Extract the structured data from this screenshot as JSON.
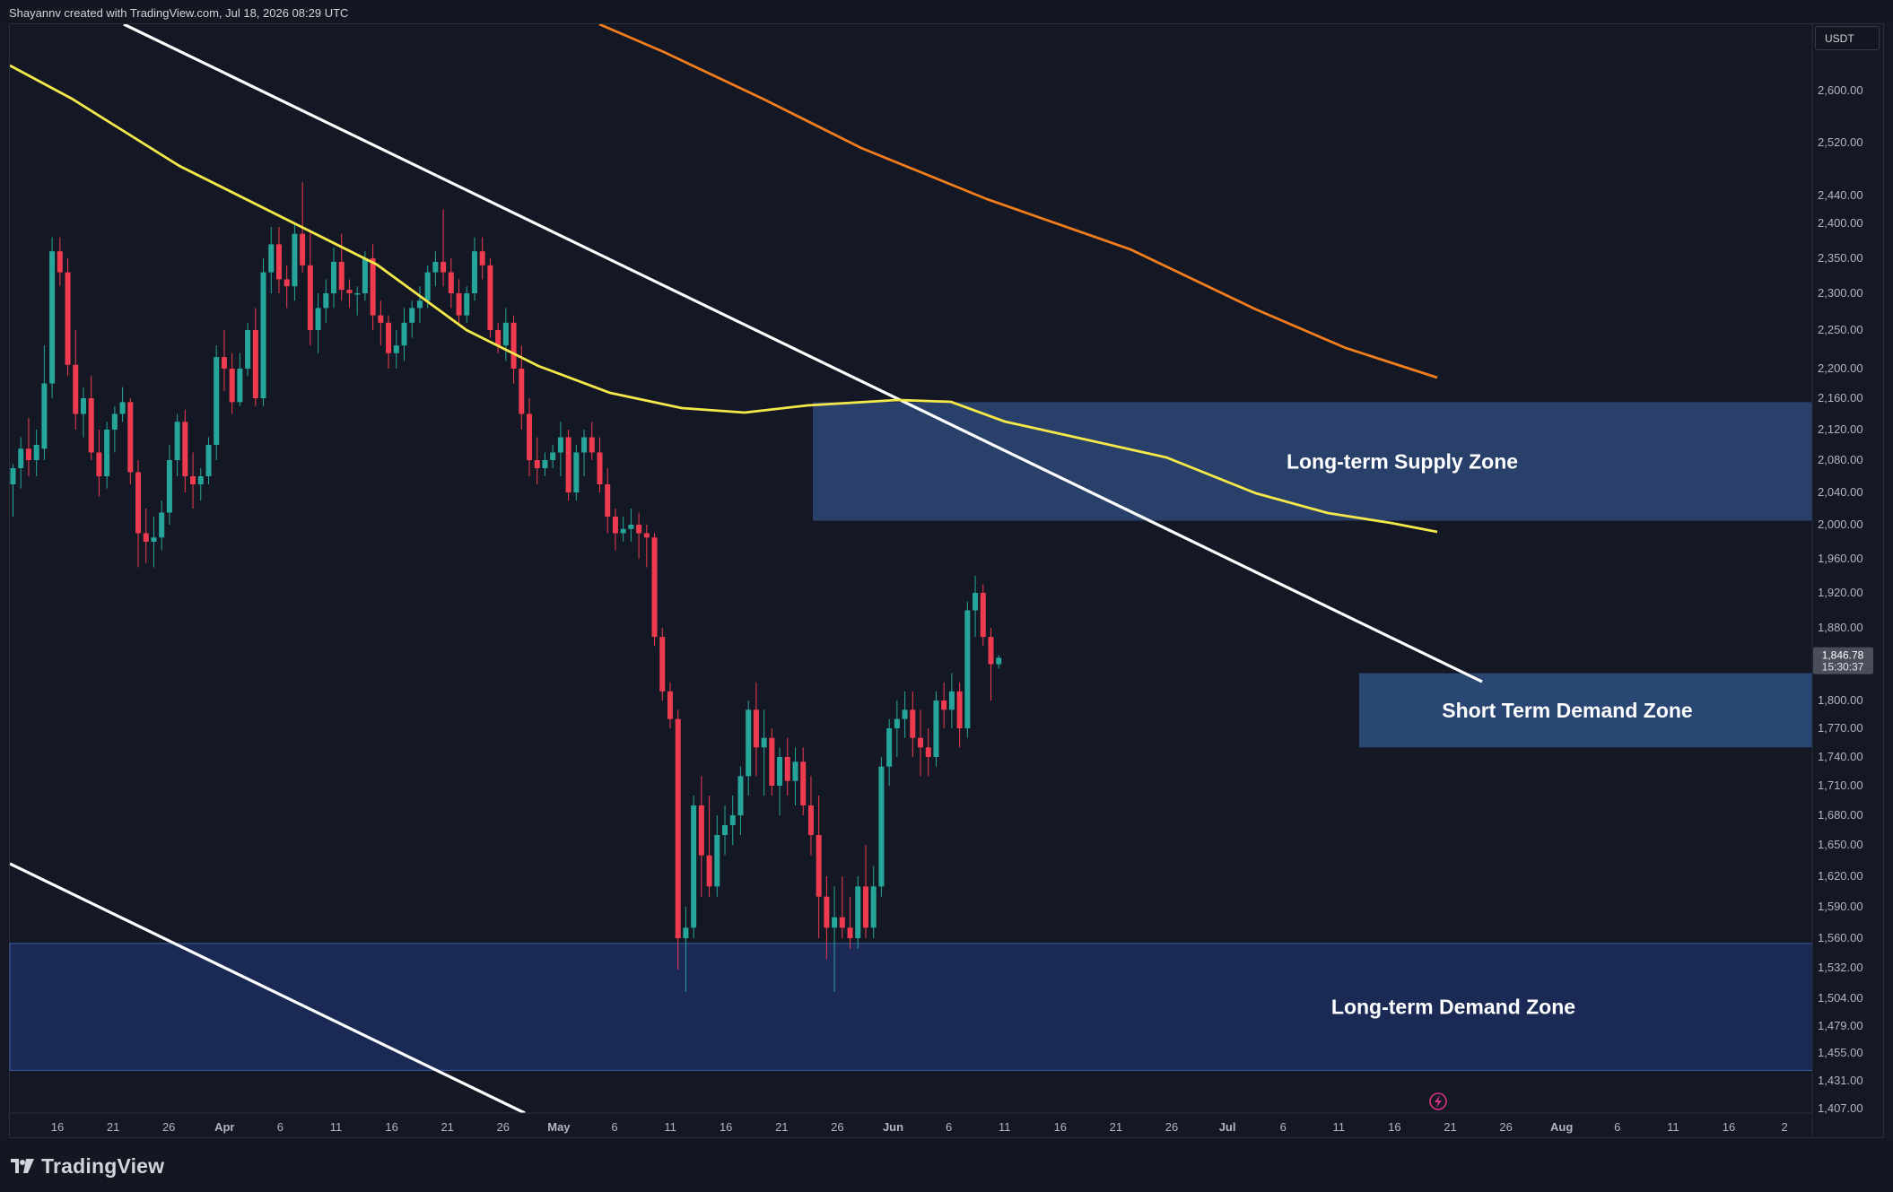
{
  "header": {
    "attribution": "Shayannv created with TradingView.com, Jul 18, 2026 08:29 UTC"
  },
  "price_axis": {
    "currency": "USDT",
    "ticks": [
      "2,600.00",
      "2,520.00",
      "2,440.00",
      "2,400.00",
      "2,350.00",
      "2,300.00",
      "2,250.00",
      "2,200.00",
      "2,160.00",
      "2,120.00",
      "2,080.00",
      "2,040.00",
      "2,000.00",
      "1,960.00",
      "1,920.00",
      "1,880.00",
      "1,800.00",
      "1,770.00",
      "1,740.00",
      "1,710.00",
      "1,680.00",
      "1,650.00",
      "1,620.00",
      "1,590.00",
      "1,560.00",
      "1,532.00",
      "1,504.00",
      "1,479.00",
      "1,455.00",
      "1,431.00",
      "1,407.00"
    ],
    "current_price": "1,846.78",
    "countdown": "15:30:37"
  },
  "time_axis": {
    "ticks": [
      "16",
      "21",
      "26",
      "Apr",
      "6",
      "11",
      "16",
      "21",
      "26",
      "May",
      "6",
      "11",
      "16",
      "21",
      "26",
      "Jun",
      "6",
      "11",
      "16",
      "21",
      "26",
      "Jul",
      "6",
      "11",
      "16",
      "21",
      "26",
      "Aug",
      "6",
      "11",
      "16",
      "2"
    ]
  },
  "footer": {
    "brand": "TradingView"
  },
  "colors": {
    "background": "#141824",
    "bullish": "#26a69a",
    "bearish": "#ef3b50",
    "ma_fast": "#f5e84a",
    "ma_slow": "#f27d1d",
    "zone": "#2e4c7e"
  },
  "chart_data": {
    "type": "candlestick",
    "title": "",
    "price_labels": [
      2600,
      2520,
      2440,
      2400,
      2350,
      2300,
      2250,
      2200,
      2160,
      2120,
      2080,
      2040,
      2000,
      1960,
      1920,
      1880,
      1800,
      1770,
      1740,
      1710,
      1680,
      1650,
      1620,
      1590,
      1560,
      1532,
      1504,
      1479,
      1455,
      1431,
      1407
    ],
    "x_ticks": [
      "16",
      "21",
      "26",
      "Apr",
      "6",
      "11",
      "16",
      "21",
      "26",
      "May",
      "6",
      "11",
      "16",
      "21",
      "26",
      "Jun",
      "6",
      "11",
      "16",
      "21",
      "26",
      "Jul",
      "6",
      "11",
      "16",
      "21",
      "26",
      "Aug",
      "6",
      "11",
      "16",
      "2"
    ],
    "last_price": 1846.78,
    "countdown": "15:30:37",
    "grid": false,
    "candles": [
      {
        "o": 2050,
        "h": 2075,
        "l": 2010,
        "c": 2070
      },
      {
        "o": 2070,
        "h": 2110,
        "l": 2045,
        "c": 2095
      },
      {
        "o": 2095,
        "h": 2135,
        "l": 2060,
        "c": 2080
      },
      {
        "o": 2080,
        "h": 2120,
        "l": 2060,
        "c": 2100
      },
      {
        "o": 2095,
        "h": 2230,
        "l": 2080,
        "c": 2180
      },
      {
        "o": 2180,
        "h": 2380,
        "l": 2160,
        "c": 2360
      },
      {
        "o": 2360,
        "h": 2380,
        "l": 2310,
        "c": 2330
      },
      {
        "o": 2330,
        "h": 2350,
        "l": 2190,
        "c": 2205
      },
      {
        "o": 2205,
        "h": 2250,
        "l": 2120,
        "c": 2140
      },
      {
        "o": 2140,
        "h": 2175,
        "l": 2110,
        "c": 2160
      },
      {
        "o": 2160,
        "h": 2190,
        "l": 2080,
        "c": 2090
      },
      {
        "o": 2090,
        "h": 2120,
        "l": 2035,
        "c": 2060
      },
      {
        "o": 2060,
        "h": 2130,
        "l": 2045,
        "c": 2120
      },
      {
        "o": 2120,
        "h": 2150,
        "l": 2090,
        "c": 2140
      },
      {
        "o": 2140,
        "h": 2175,
        "l": 2130,
        "c": 2155
      },
      {
        "o": 2155,
        "h": 2160,
        "l": 2050,
        "c": 2065
      },
      {
        "o": 2065,
        "h": 2080,
        "l": 1950,
        "c": 1990
      },
      {
        "o": 1990,
        "h": 2020,
        "l": 1955,
        "c": 1980
      },
      {
        "o": 1980,
        "h": 2010,
        "l": 1950,
        "c": 1985
      },
      {
        "o": 1985,
        "h": 2030,
        "l": 1970,
        "c": 2015
      },
      {
        "o": 2015,
        "h": 2100,
        "l": 2000,
        "c": 2080
      },
      {
        "o": 2080,
        "h": 2140,
        "l": 2060,
        "c": 2130
      },
      {
        "o": 2130,
        "h": 2145,
        "l": 2040,
        "c": 2060
      },
      {
        "o": 2060,
        "h": 2090,
        "l": 2020,
        "c": 2050
      },
      {
        "o": 2050,
        "h": 2070,
        "l": 2030,
        "c": 2060
      },
      {
        "o": 2060,
        "h": 2110,
        "l": 2050,
        "c": 2100
      },
      {
        "o": 2100,
        "h": 2230,
        "l": 2080,
        "c": 2215
      },
      {
        "o": 2215,
        "h": 2250,
        "l": 2170,
        "c": 2200
      },
      {
        "o": 2200,
        "h": 2220,
        "l": 2140,
        "c": 2155
      },
      {
        "o": 2155,
        "h": 2220,
        "l": 2150,
        "c": 2200
      },
      {
        "o": 2200,
        "h": 2260,
        "l": 2190,
        "c": 2250
      },
      {
        "o": 2250,
        "h": 2280,
        "l": 2150,
        "c": 2160
      },
      {
        "o": 2160,
        "h": 2350,
        "l": 2150,
        "c": 2330
      },
      {
        "o": 2330,
        "h": 2395,
        "l": 2300,
        "c": 2370
      },
      {
        "o": 2370,
        "h": 2395,
        "l": 2300,
        "c": 2320
      },
      {
        "o": 2320,
        "h": 2340,
        "l": 2280,
        "c": 2310
      },
      {
        "o": 2310,
        "h": 2400,
        "l": 2290,
        "c": 2385
      },
      {
        "o": 2385,
        "h": 2460,
        "l": 2330,
        "c": 2340
      },
      {
        "o": 2340,
        "h": 2390,
        "l": 2230,
        "c": 2250
      },
      {
        "o": 2250,
        "h": 2300,
        "l": 2220,
        "c": 2280
      },
      {
        "o": 2280,
        "h": 2320,
        "l": 2260,
        "c": 2300
      },
      {
        "o": 2300,
        "h": 2365,
        "l": 2280,
        "c": 2345
      },
      {
        "o": 2345,
        "h": 2385,
        "l": 2290,
        "c": 2305
      },
      {
        "o": 2305,
        "h": 2320,
        "l": 2280,
        "c": 2300
      },
      {
        "o": 2300,
        "h": 2310,
        "l": 2270,
        "c": 2300
      },
      {
        "o": 2300,
        "h": 2360,
        "l": 2290,
        "c": 2350
      },
      {
        "o": 2350,
        "h": 2370,
        "l": 2250,
        "c": 2270
      },
      {
        "o": 2270,
        "h": 2290,
        "l": 2230,
        "c": 2260
      },
      {
        "o": 2260,
        "h": 2270,
        "l": 2200,
        "c": 2220
      },
      {
        "o": 2220,
        "h": 2250,
        "l": 2200,
        "c": 2230
      },
      {
        "o": 2230,
        "h": 2280,
        "l": 2210,
        "c": 2260
      },
      {
        "o": 2260,
        "h": 2290,
        "l": 2240,
        "c": 2280
      },
      {
        "o": 2280,
        "h": 2310,
        "l": 2260,
        "c": 2290
      },
      {
        "o": 2290,
        "h": 2340,
        "l": 2280,
        "c": 2330
      },
      {
        "o": 2330,
        "h": 2360,
        "l": 2310,
        "c": 2345
      },
      {
        "o": 2345,
        "h": 2420,
        "l": 2310,
        "c": 2330
      },
      {
        "o": 2330,
        "h": 2350,
        "l": 2280,
        "c": 2300
      },
      {
        "o": 2300,
        "h": 2320,
        "l": 2260,
        "c": 2270
      },
      {
        "o": 2270,
        "h": 2310,
        "l": 2260,
        "c": 2300
      },
      {
        "o": 2300,
        "h": 2380,
        "l": 2290,
        "c": 2360
      },
      {
        "o": 2360,
        "h": 2380,
        "l": 2320,
        "c": 2340
      },
      {
        "o": 2340,
        "h": 2350,
        "l": 2240,
        "c": 2250
      },
      {
        "o": 2250,
        "h": 2260,
        "l": 2220,
        "c": 2230
      },
      {
        "o": 2230,
        "h": 2280,
        "l": 2210,
        "c": 2260
      },
      {
        "o": 2260,
        "h": 2270,
        "l": 2180,
        "c": 2200
      },
      {
        "o": 2200,
        "h": 2230,
        "l": 2120,
        "c": 2140
      },
      {
        "o": 2140,
        "h": 2160,
        "l": 2060,
        "c": 2080
      },
      {
        "o": 2080,
        "h": 2110,
        "l": 2050,
        "c": 2070
      },
      {
        "o": 2070,
        "h": 2090,
        "l": 2060,
        "c": 2080
      },
      {
        "o": 2080,
        "h": 2100,
        "l": 2070,
        "c": 2090
      },
      {
        "o": 2090,
        "h": 2130,
        "l": 2060,
        "c": 2110
      },
      {
        "o": 2110,
        "h": 2120,
        "l": 2030,
        "c": 2040
      },
      {
        "o": 2040,
        "h": 2100,
        "l": 2030,
        "c": 2090
      },
      {
        "o": 2090,
        "h": 2120,
        "l": 2060,
        "c": 2110
      },
      {
        "o": 2110,
        "h": 2130,
        "l": 2080,
        "c": 2090
      },
      {
        "o": 2090,
        "h": 2110,
        "l": 2040,
        "c": 2050
      },
      {
        "o": 2050,
        "h": 2070,
        "l": 1990,
        "c": 2010
      },
      {
        "o": 2010,
        "h": 2020,
        "l": 1970,
        "c": 1990
      },
      {
        "o": 1990,
        "h": 2010,
        "l": 1980,
        "c": 1995
      },
      {
        "o": 1995,
        "h": 2020,
        "l": 1980,
        "c": 2000
      },
      {
        "o": 2000,
        "h": 2015,
        "l": 1960,
        "c": 1990
      },
      {
        "o": 1990,
        "h": 2000,
        "l": 1950,
        "c": 1985
      },
      {
        "o": 1985,
        "h": 1990,
        "l": 1860,
        "c": 1870
      },
      {
        "o": 1870,
        "h": 1880,
        "l": 1800,
        "c": 1810
      },
      {
        "o": 1810,
        "h": 1820,
        "l": 1770,
        "c": 1780
      },
      {
        "o": 1780,
        "h": 1790,
        "l": 1530,
        "c": 1560
      },
      {
        "o": 1560,
        "h": 1590,
        "l": 1510,
        "c": 1570
      },
      {
        "o": 1570,
        "h": 1700,
        "l": 1560,
        "c": 1690
      },
      {
        "o": 1690,
        "h": 1720,
        "l": 1600,
        "c": 1640
      },
      {
        "o": 1640,
        "h": 1700,
        "l": 1600,
        "c": 1610
      },
      {
        "o": 1610,
        "h": 1680,
        "l": 1600,
        "c": 1660
      },
      {
        "o": 1660,
        "h": 1690,
        "l": 1640,
        "c": 1670
      },
      {
        "o": 1670,
        "h": 1700,
        "l": 1650,
        "c": 1680
      },
      {
        "o": 1680,
        "h": 1730,
        "l": 1660,
        "c": 1720
      },
      {
        "o": 1720,
        "h": 1800,
        "l": 1700,
        "c": 1790
      },
      {
        "o": 1790,
        "h": 1820,
        "l": 1720,
        "c": 1750
      },
      {
        "o": 1750,
        "h": 1790,
        "l": 1700,
        "c": 1760
      },
      {
        "o": 1760,
        "h": 1770,
        "l": 1700,
        "c": 1710
      },
      {
        "o": 1710,
        "h": 1750,
        "l": 1680,
        "c": 1740
      },
      {
        "o": 1740,
        "h": 1760,
        "l": 1700,
        "c": 1715
      },
      {
        "o": 1715,
        "h": 1750,
        "l": 1690,
        "c": 1735
      },
      {
        "o": 1735,
        "h": 1750,
        "l": 1680,
        "c": 1690
      },
      {
        "o": 1690,
        "h": 1720,
        "l": 1640,
        "c": 1660
      },
      {
        "o": 1660,
        "h": 1700,
        "l": 1560,
        "c": 1600
      },
      {
        "o": 1600,
        "h": 1620,
        "l": 1540,
        "c": 1570
      },
      {
        "o": 1570,
        "h": 1610,
        "l": 1510,
        "c": 1580
      },
      {
        "o": 1580,
        "h": 1620,
        "l": 1560,
        "c": 1570
      },
      {
        "o": 1570,
        "h": 1600,
        "l": 1550,
        "c": 1560
      },
      {
        "o": 1560,
        "h": 1620,
        "l": 1550,
        "c": 1610
      },
      {
        "o": 1610,
        "h": 1650,
        "l": 1560,
        "c": 1570
      },
      {
        "o": 1570,
        "h": 1630,
        "l": 1560,
        "c": 1610
      },
      {
        "o": 1610,
        "h": 1740,
        "l": 1600,
        "c": 1730
      },
      {
        "o": 1730,
        "h": 1780,
        "l": 1710,
        "c": 1770
      },
      {
        "o": 1770,
        "h": 1800,
        "l": 1740,
        "c": 1780
      },
      {
        "o": 1780,
        "h": 1810,
        "l": 1760,
        "c": 1790
      },
      {
        "o": 1790,
        "h": 1810,
        "l": 1740,
        "c": 1760
      },
      {
        "o": 1760,
        "h": 1790,
        "l": 1720,
        "c": 1750
      },
      {
        "o": 1750,
        "h": 1770,
        "l": 1720,
        "c": 1740
      },
      {
        "o": 1740,
        "h": 1810,
        "l": 1730,
        "c": 1800
      },
      {
        "o": 1800,
        "h": 1820,
        "l": 1770,
        "c": 1790
      },
      {
        "o": 1790,
        "h": 1830,
        "l": 1770,
        "c": 1810
      },
      {
        "o": 1810,
        "h": 1820,
        "l": 1750,
        "c": 1770
      },
      {
        "o": 1770,
        "h": 1910,
        "l": 1760,
        "c": 1900
      },
      {
        "o": 1900,
        "h": 1940,
        "l": 1870,
        "c": 1920
      },
      {
        "o": 1920,
        "h": 1930,
        "l": 1860,
        "c": 1870
      },
      {
        "o": 1870,
        "h": 1880,
        "l": 1800,
        "c": 1840
      },
      {
        "o": 1840,
        "h": 1850,
        "l": 1835,
        "c": 1847
      }
    ],
    "series": [
      {
        "name": "",
        "type": "line",
        "color": "#f5e84a"
      },
      {
        "name": "",
        "type": "line",
        "color": "#f27d1d"
      }
    ],
    "annotations": [
      {
        "label": "Long-term Supply Zone",
        "low": 2005,
        "high": 2155
      },
      {
        "label": "Short Term Demand Zone",
        "low": 1750,
        "high": 1830
      },
      {
        "label": "Long-term Demand Zone",
        "low": 1440,
        "high": 1555
      }
    ]
  }
}
